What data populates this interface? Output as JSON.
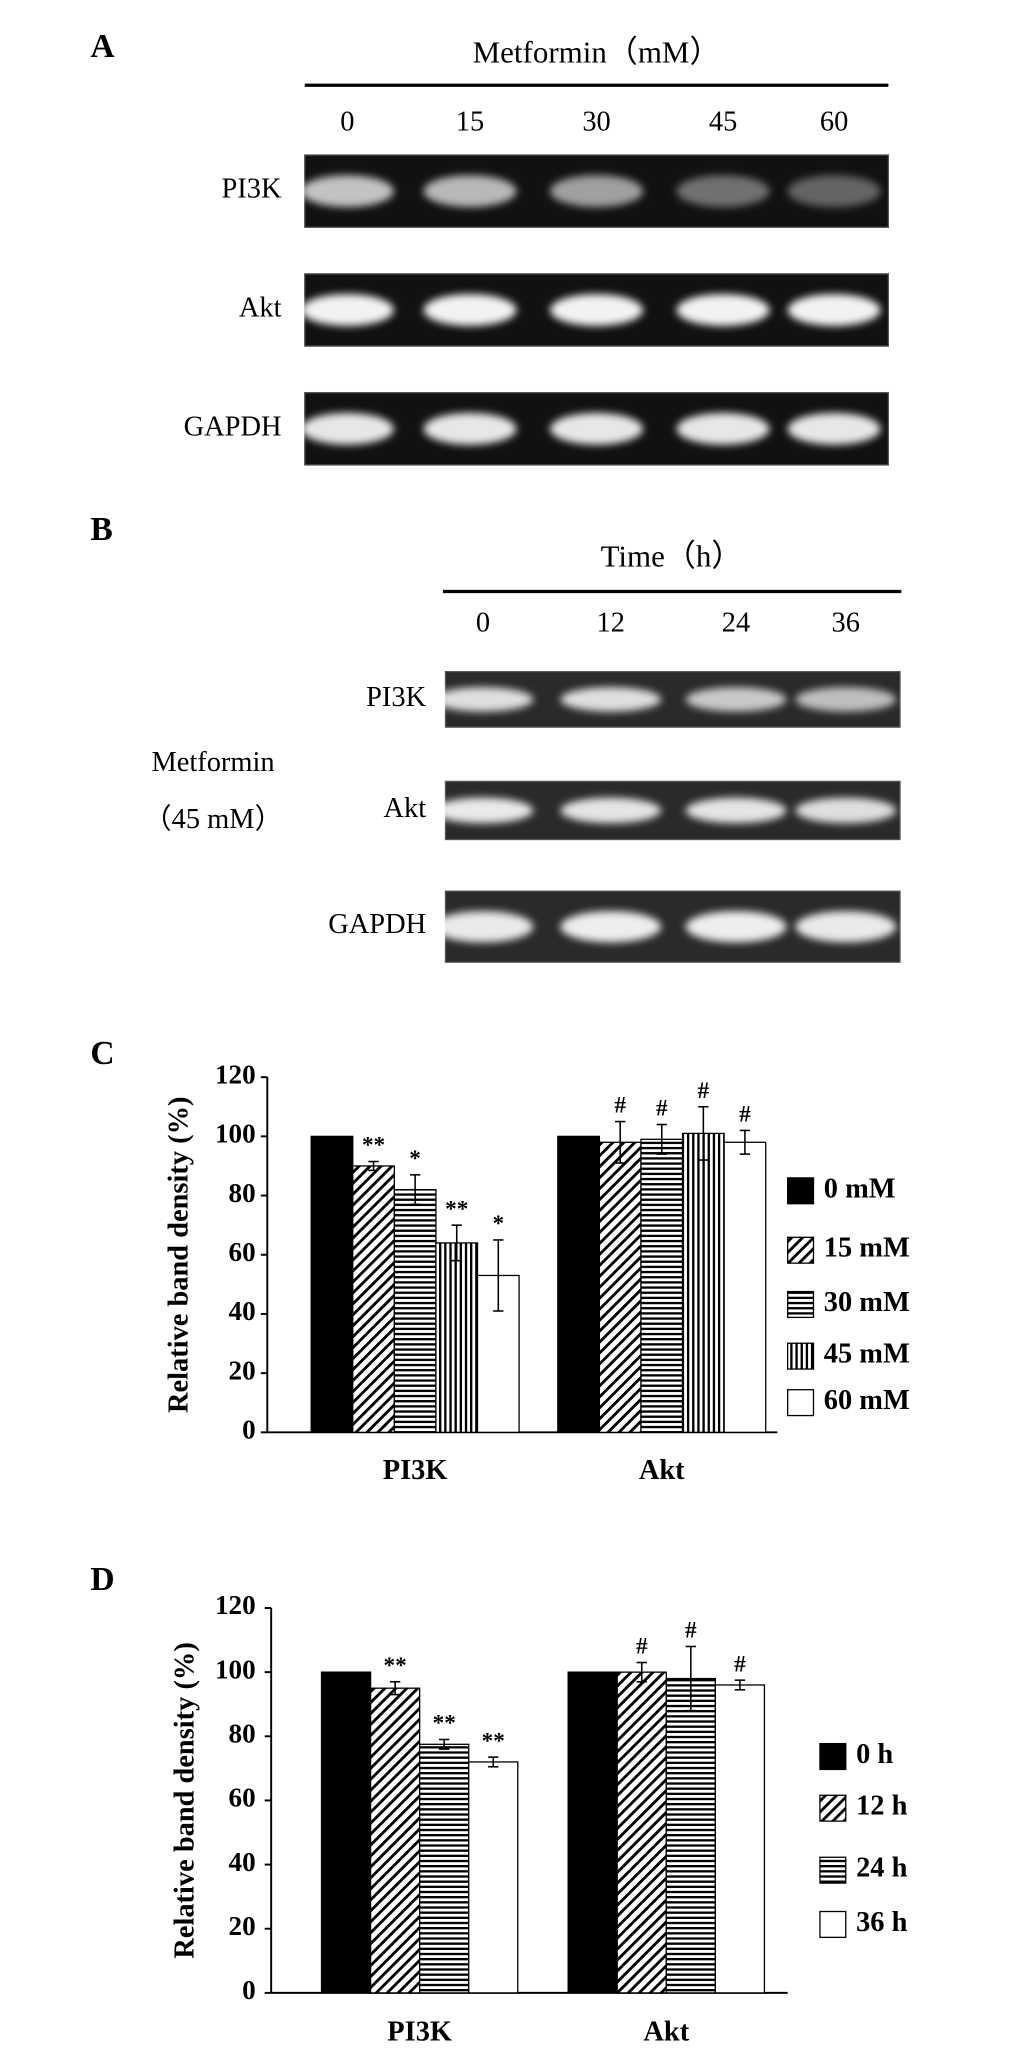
{
  "panels": [
    {
      "letter": "A",
      "header": "Metformin（mM）",
      "lanes": [
        "0",
        "15",
        "30",
        "45",
        "60"
      ],
      "rows": [
        "PI3K",
        "Akt",
        "GAPDH"
      ]
    },
    {
      "letter": "B",
      "header": "Time（h）",
      "lanes": [
        "0",
        "12",
        "24",
        "36"
      ],
      "rows": [
        "PI3K",
        "Akt",
        "GAPDH"
      ],
      "treatment": [
        "Metformin",
        "（45 mM）"
      ]
    },
    {
      "letter": "C"
    },
    {
      "letter": "D"
    }
  ],
  "chart_data": [
    {
      "type": "bar",
      "ylabel": "Relative band density (%)",
      "categories": [
        "PI3K",
        "Akt"
      ],
      "ylim": [
        0,
        120
      ],
      "yticks": [
        0,
        20,
        40,
        60,
        80,
        100,
        120
      ],
      "series": [
        {
          "name": "0 mM",
          "color": "#000000",
          "pattern": "solid",
          "values": [
            100,
            100
          ],
          "errors": [
            0,
            0
          ]
        },
        {
          "name": "15 mM",
          "color": "#000000",
          "pattern": "diagonal",
          "values": [
            90,
            98
          ],
          "errors": [
            1.5,
            7
          ],
          "markers": [
            "**",
            "#"
          ]
        },
        {
          "name": "30 mM",
          "color": "#000000",
          "pattern": "horizontal",
          "values": [
            82,
            99
          ],
          "errors": [
            5,
            5
          ],
          "markers": [
            "*",
            "#"
          ]
        },
        {
          "name": "45 mM",
          "color": "#000000",
          "pattern": "vertical",
          "values": [
            64,
            101
          ],
          "errors": [
            6,
            9
          ],
          "markers": [
            "**",
            "#"
          ]
        },
        {
          "name": "60 mM",
          "color": "#000000",
          "pattern": "none",
          "values": [
            53,
            98
          ],
          "errors": [
            12,
            4
          ],
          "markers": [
            "*",
            "#"
          ]
        }
      ]
    },
    {
      "type": "bar",
      "ylabel": "Relative band density (%)",
      "categories": [
        "PI3K",
        "Akt"
      ],
      "ylim": [
        0,
        120
      ],
      "yticks": [
        0,
        20,
        40,
        60,
        80,
        100,
        120
      ],
      "series": [
        {
          "name": "0 h",
          "color": "#000000",
          "pattern": "solid",
          "values": [
            100,
            100
          ],
          "errors": [
            0,
            0
          ]
        },
        {
          "name": "12 h",
          "color": "#000000",
          "pattern": "diagonal",
          "values": [
            95,
            100
          ],
          "errors": [
            2,
            3
          ],
          "markers": [
            "**",
            "#"
          ]
        },
        {
          "name": "24 h",
          "color": "#000000",
          "pattern": "horizontal",
          "values": [
            77.5,
            98
          ],
          "errors": [
            1.5,
            10
          ],
          "markers": [
            "**",
            "#"
          ]
        },
        {
          "name": "36 h",
          "color": "#000000",
          "pattern": "none",
          "values": [
            72,
            96
          ],
          "errors": [
            1.5,
            1.5
          ],
          "markers": [
            "**",
            "#"
          ]
        }
      ]
    }
  ]
}
